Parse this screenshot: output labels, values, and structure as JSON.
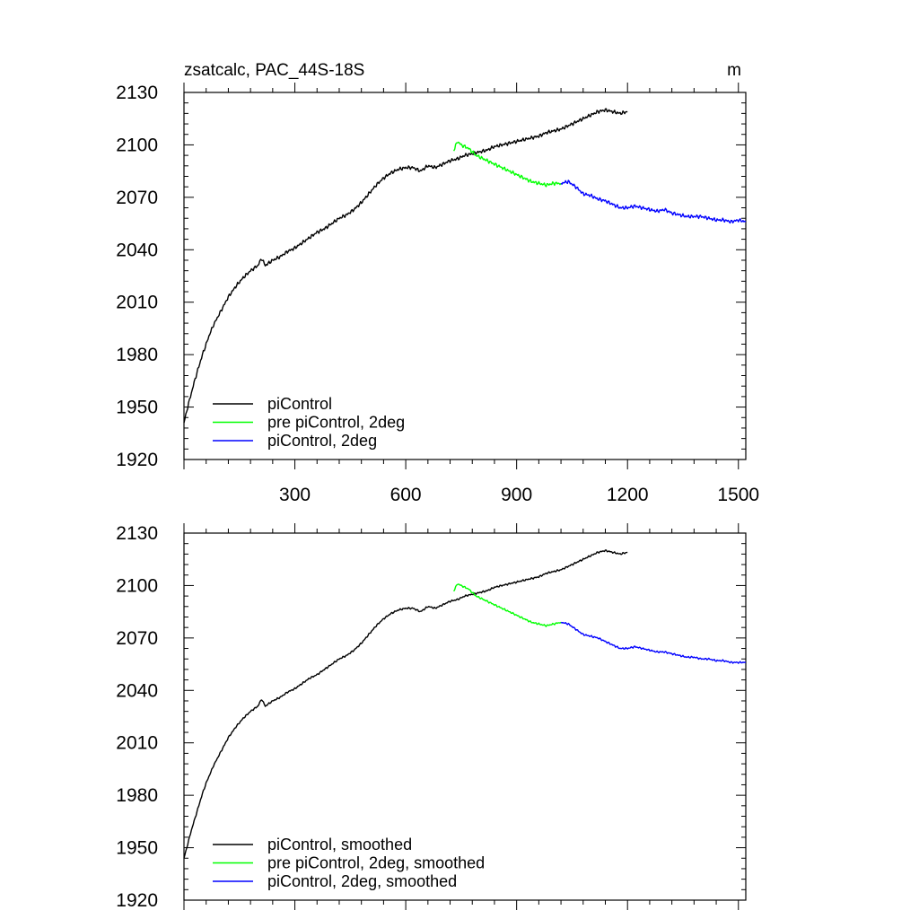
{
  "chart_data": [
    {
      "type": "line",
      "title": "zsatcalc, PAC_44S-18S",
      "units": "m",
      "xlim": [
        0,
        1520
      ],
      "ylim": [
        1920,
        2130
      ],
      "xticks": [
        300,
        600,
        900,
        1200,
        1500
      ],
      "yticks": [
        1920,
        1950,
        1980,
        2010,
        2040,
        2070,
        2100,
        2130
      ],
      "show_x_tick_labels": true,
      "legend_position": "bottom-left",
      "series": [
        {
          "name": "piControl",
          "color": "#000000",
          "x": [
            0,
            10,
            20,
            30,
            40,
            50,
            60,
            70,
            80,
            90,
            100,
            120,
            140,
            160,
            180,
            200,
            210,
            220,
            240,
            260,
            280,
            300,
            320,
            340,
            360,
            380,
            400,
            420,
            440,
            460,
            480,
            500,
            520,
            540,
            560,
            580,
            600,
            620,
            640,
            660,
            680,
            700,
            720,
            740,
            760,
            780,
            800,
            820,
            840,
            860,
            880,
            900,
            920,
            940,
            960,
            980,
            1000,
            1020,
            1040,
            1060,
            1080,
            1100,
            1120,
            1140,
            1160,
            1180,
            1200
          ],
          "values": [
            1941,
            1950,
            1958,
            1966,
            1973,
            1980,
            1986,
            1992,
            1997,
            2001,
            2005,
            2013,
            2019,
            2024,
            2028,
            2031,
            2035,
            2031,
            2034,
            2036,
            2039,
            2041,
            2044,
            2047,
            2050,
            2052,
            2055,
            2058,
            2060,
            2063,
            2067,
            2072,
            2077,
            2081,
            2084,
            2086,
            2087,
            2087,
            2085,
            2088,
            2087,
            2089,
            2091,
            2092,
            2094,
            2095,
            2096,
            2097,
            2099,
            2100,
            2101,
            2102,
            2103,
            2104,
            2105,
            2107,
            2108,
            2109,
            2111,
            2113,
            2115,
            2117,
            2119,
            2120,
            2119,
            2118,
            2119
          ]
        },
        {
          "name": "pre piControl, 2deg",
          "color": "#00ff00",
          "x": [
            730,
            740,
            750,
            760,
            770,
            780,
            790,
            800,
            820,
            840,
            860,
            880,
            900,
            920,
            940,
            960,
            980,
            1000,
            1020
          ],
          "values": [
            2097,
            2102,
            2100,
            2099,
            2098,
            2096,
            2094,
            2093,
            2091,
            2089,
            2087,
            2085,
            2083,
            2081,
            2079,
            2078,
            2077,
            2078,
            2078
          ]
        },
        {
          "name": "piControl, 2deg",
          "color": "#0000ff",
          "x": [
            1020,
            1040,
            1060,
            1080,
            1100,
            1120,
            1140,
            1160,
            1180,
            1200,
            1220,
            1240,
            1260,
            1280,
            1300,
            1320,
            1340,
            1360,
            1380,
            1400,
            1420,
            1440,
            1460,
            1480,
            1500,
            1520
          ],
          "values": [
            2078,
            2079,
            2076,
            2072,
            2071,
            2069,
            2068,
            2066,
            2064,
            2064,
            2065,
            2064,
            2063,
            2062,
            2063,
            2061,
            2060,
            2059,
            2059,
            2059,
            2058,
            2057,
            2057,
            2056,
            2057,
            2056
          ]
        }
      ]
    },
    {
      "type": "line",
      "title": "",
      "units": "",
      "xlim": [
        0,
        1520
      ],
      "ylim": [
        1920,
        2130
      ],
      "xticks": [
        300,
        600,
        900,
        1200,
        1500
      ],
      "yticks": [
        1920,
        1950,
        1980,
        2010,
        2040,
        2070,
        2100,
        2130
      ],
      "show_x_tick_labels": false,
      "legend_position": "bottom-left",
      "series": [
        {
          "name": "piControl, smoothed",
          "color": "#000000",
          "x": [
            0,
            10,
            20,
            30,
            40,
            50,
            60,
            70,
            80,
            90,
            100,
            120,
            140,
            160,
            180,
            200,
            210,
            220,
            240,
            260,
            280,
            300,
            320,
            340,
            360,
            380,
            400,
            420,
            440,
            460,
            480,
            500,
            520,
            540,
            560,
            580,
            600,
            620,
            640,
            660,
            680,
            700,
            720,
            740,
            760,
            780,
            800,
            820,
            840,
            860,
            880,
            900,
            920,
            940,
            960,
            980,
            1000,
            1020,
            1040,
            1060,
            1080,
            1100,
            1120,
            1140,
            1160,
            1180,
            1200
          ],
          "values": [
            1944,
            1952,
            1960,
            1967,
            1974,
            1981,
            1987,
            1992,
            1997,
            2001,
            2005,
            2013,
            2019,
            2024,
            2028,
            2031,
            2035,
            2031,
            2034,
            2036,
            2039,
            2041,
            2044,
            2047,
            2049,
            2052,
            2055,
            2058,
            2060,
            2063,
            2067,
            2072,
            2077,
            2081,
            2084,
            2086,
            2087,
            2087,
            2085,
            2088,
            2087,
            2089,
            2091,
            2092,
            2094,
            2095,
            2096,
            2097,
            2099,
            2100,
            2101,
            2102,
            2103,
            2104,
            2105,
            2107,
            2108,
            2109,
            2111,
            2113,
            2115,
            2117,
            2119,
            2120,
            2119,
            2118,
            2119
          ]
        },
        {
          "name": "pre piControl, 2deg, smoothed",
          "color": "#00ff00",
          "x": [
            730,
            740,
            750,
            760,
            770,
            780,
            790,
            800,
            820,
            840,
            860,
            880,
            900,
            920,
            940,
            960,
            980,
            1000,
            1020
          ],
          "values": [
            2097,
            2101,
            2100,
            2099,
            2098,
            2096,
            2094,
            2093,
            2091,
            2089,
            2087,
            2085,
            2083,
            2081,
            2079,
            2078,
            2077,
            2078,
            2079
          ]
        },
        {
          "name": "piControl, 2deg, smoothed",
          "color": "#0000ff",
          "x": [
            1020,
            1040,
            1060,
            1080,
            1100,
            1120,
            1140,
            1160,
            1180,
            1200,
            1220,
            1240,
            1260,
            1280,
            1300,
            1320,
            1340,
            1360,
            1380,
            1400,
            1420,
            1440,
            1460,
            1480,
            1500,
            1520
          ],
          "values": [
            2079,
            2078,
            2075,
            2072,
            2071,
            2070,
            2068,
            2066,
            2064,
            2064,
            2065,
            2064,
            2063,
            2062,
            2062,
            2061,
            2060,
            2059,
            2059,
            2058,
            2058,
            2057,
            2057,
            2056,
            2056,
            2056
          ]
        }
      ]
    }
  ]
}
